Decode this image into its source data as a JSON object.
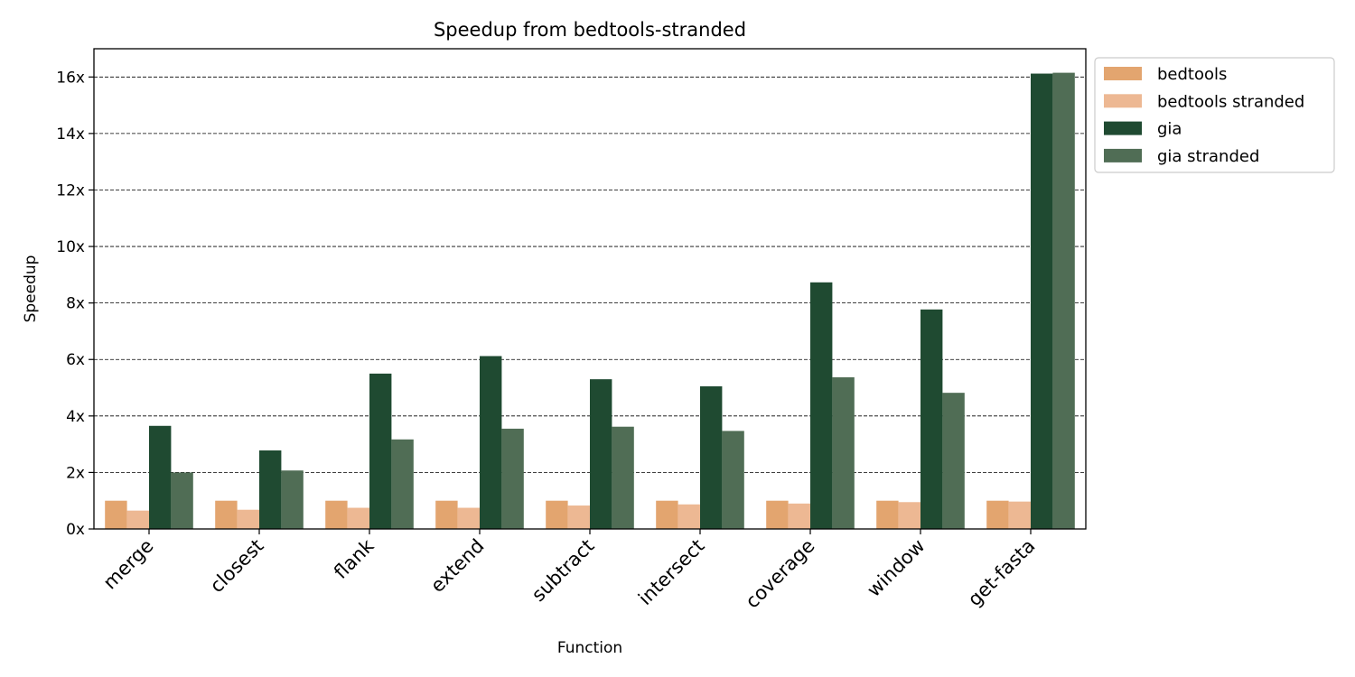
{
  "chart_data": {
    "type": "bar",
    "title": "Speedup from bedtools-stranded",
    "xlabel": "Function",
    "ylabel": "Speedup",
    "ylim": [
      0,
      17
    ],
    "yticks": [
      0,
      2,
      4,
      6,
      8,
      10,
      12,
      14,
      16
    ],
    "ytick_labels": [
      "0x",
      "2x",
      "4x",
      "6x",
      "8x",
      "10x",
      "12x",
      "14x",
      "16x"
    ],
    "grid": "horizontal dashed",
    "legend_position": "outside top-right",
    "categories": [
      "merge",
      "closest",
      "flank",
      "extend",
      "subtract",
      "intersect",
      "coverage",
      "window",
      "get-fasta"
    ],
    "series": [
      {
        "name": "bedtools",
        "color": "#E3A56F",
        "values": [
          1.0,
          1.0,
          1.0,
          1.0,
          1.0,
          1.0,
          1.0,
          1.0,
          1.0
        ]
      },
      {
        "name": "bedtools stranded",
        "color": "#EDB893",
        "values": [
          0.65,
          0.68,
          0.75,
          0.75,
          0.83,
          0.87,
          0.9,
          0.95,
          0.97
        ]
      },
      {
        "name": "gia",
        "color": "#1F4A31",
        "values": [
          3.65,
          2.78,
          5.5,
          6.12,
          5.3,
          5.05,
          8.73,
          7.77,
          16.12
        ]
      },
      {
        "name": "gia stranded",
        "color": "#506D55",
        "values": [
          2.0,
          2.07,
          3.17,
          3.55,
          3.62,
          3.47,
          5.37,
          4.82,
          16.15
        ]
      }
    ]
  }
}
